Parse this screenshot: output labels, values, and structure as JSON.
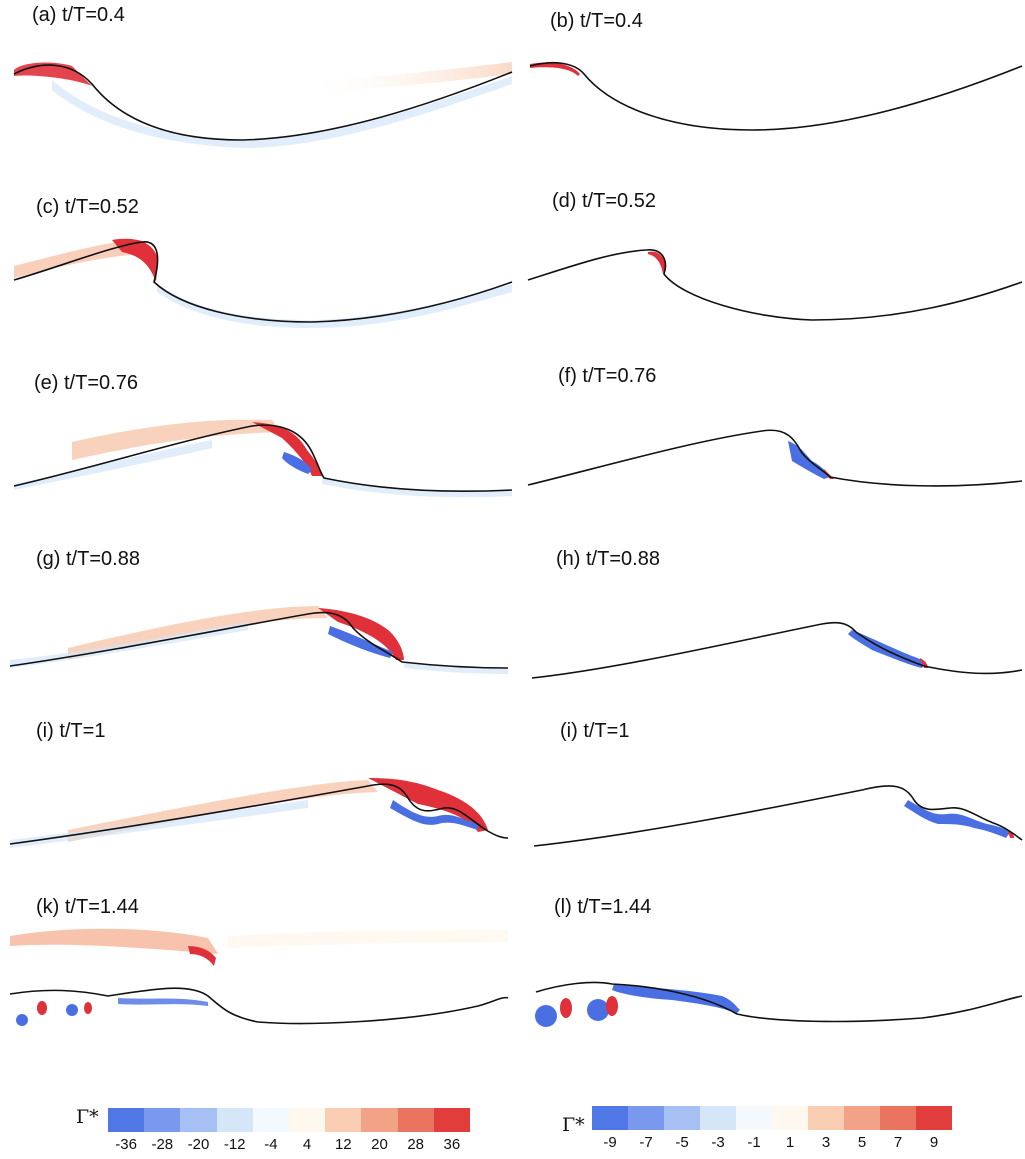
{
  "panels": [
    {
      "label": "(a) t/T=0.4"
    },
    {
      "label": "(b) t/T=0.4"
    },
    {
      "label": "(c) t/T=0.52"
    },
    {
      "label": "(d) t/T=0.52"
    },
    {
      "label": "(e) t/T=0.76"
    },
    {
      "label": "(f) t/T=0.76"
    },
    {
      "label": "(g) t/T=0.88"
    },
    {
      "label": "(h) t/T=0.88"
    },
    {
      "label": "(i) t/T=1"
    },
    {
      "label": "(i) t/T=1"
    },
    {
      "label": "(k) t/T=1.44"
    },
    {
      "label": "(l) t/T=1.44"
    }
  ],
  "colorbars": [
    {
      "symbol": "Γ*",
      "ticks": [
        "-36",
        "-28",
        "-20",
        "-12",
        "-4",
        "4",
        "12",
        "20",
        "28",
        "36"
      ],
      "colors": [
        "#4f78e6",
        "#7999ee",
        "#a7c0f4",
        "#d4e6f8",
        "#f4f9fd",
        "#fff8ef",
        "#f9cdb2",
        "#f2a286",
        "#ea7460",
        "#e23d3d"
      ]
    },
    {
      "symbol": "Γ*",
      "ticks": [
        "-9",
        "-7",
        "-5",
        "-3",
        "-1",
        "1",
        "3",
        "5",
        "7",
        "9"
      ],
      "colors": [
        "#4f78e6",
        "#7999ee",
        "#a7c0f4",
        "#d4e6f8",
        "#f4f9fd",
        "#fff8ef",
        "#f9cdb2",
        "#f2a286",
        "#ea7460",
        "#e23d3d"
      ]
    }
  ],
  "colors": {
    "surface": "#111111",
    "positive": "#e0303a",
    "negative": "#4a6fe2",
    "light_positive": "#f7c7ad",
    "light_negative": "#cfe3f6"
  }
}
